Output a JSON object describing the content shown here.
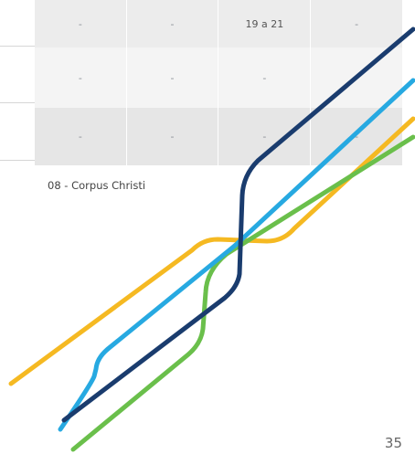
{
  "table": {
    "rows": [
      [
        "-",
        "-",
        "19 a 21",
        "-"
      ],
      [
        "-",
        "-",
        "-",
        "-"
      ],
      [
        "-",
        "-",
        "-",
        "-"
      ]
    ]
  },
  "footnote": "08 - Corpus Christi",
  "page_number": "35"
}
